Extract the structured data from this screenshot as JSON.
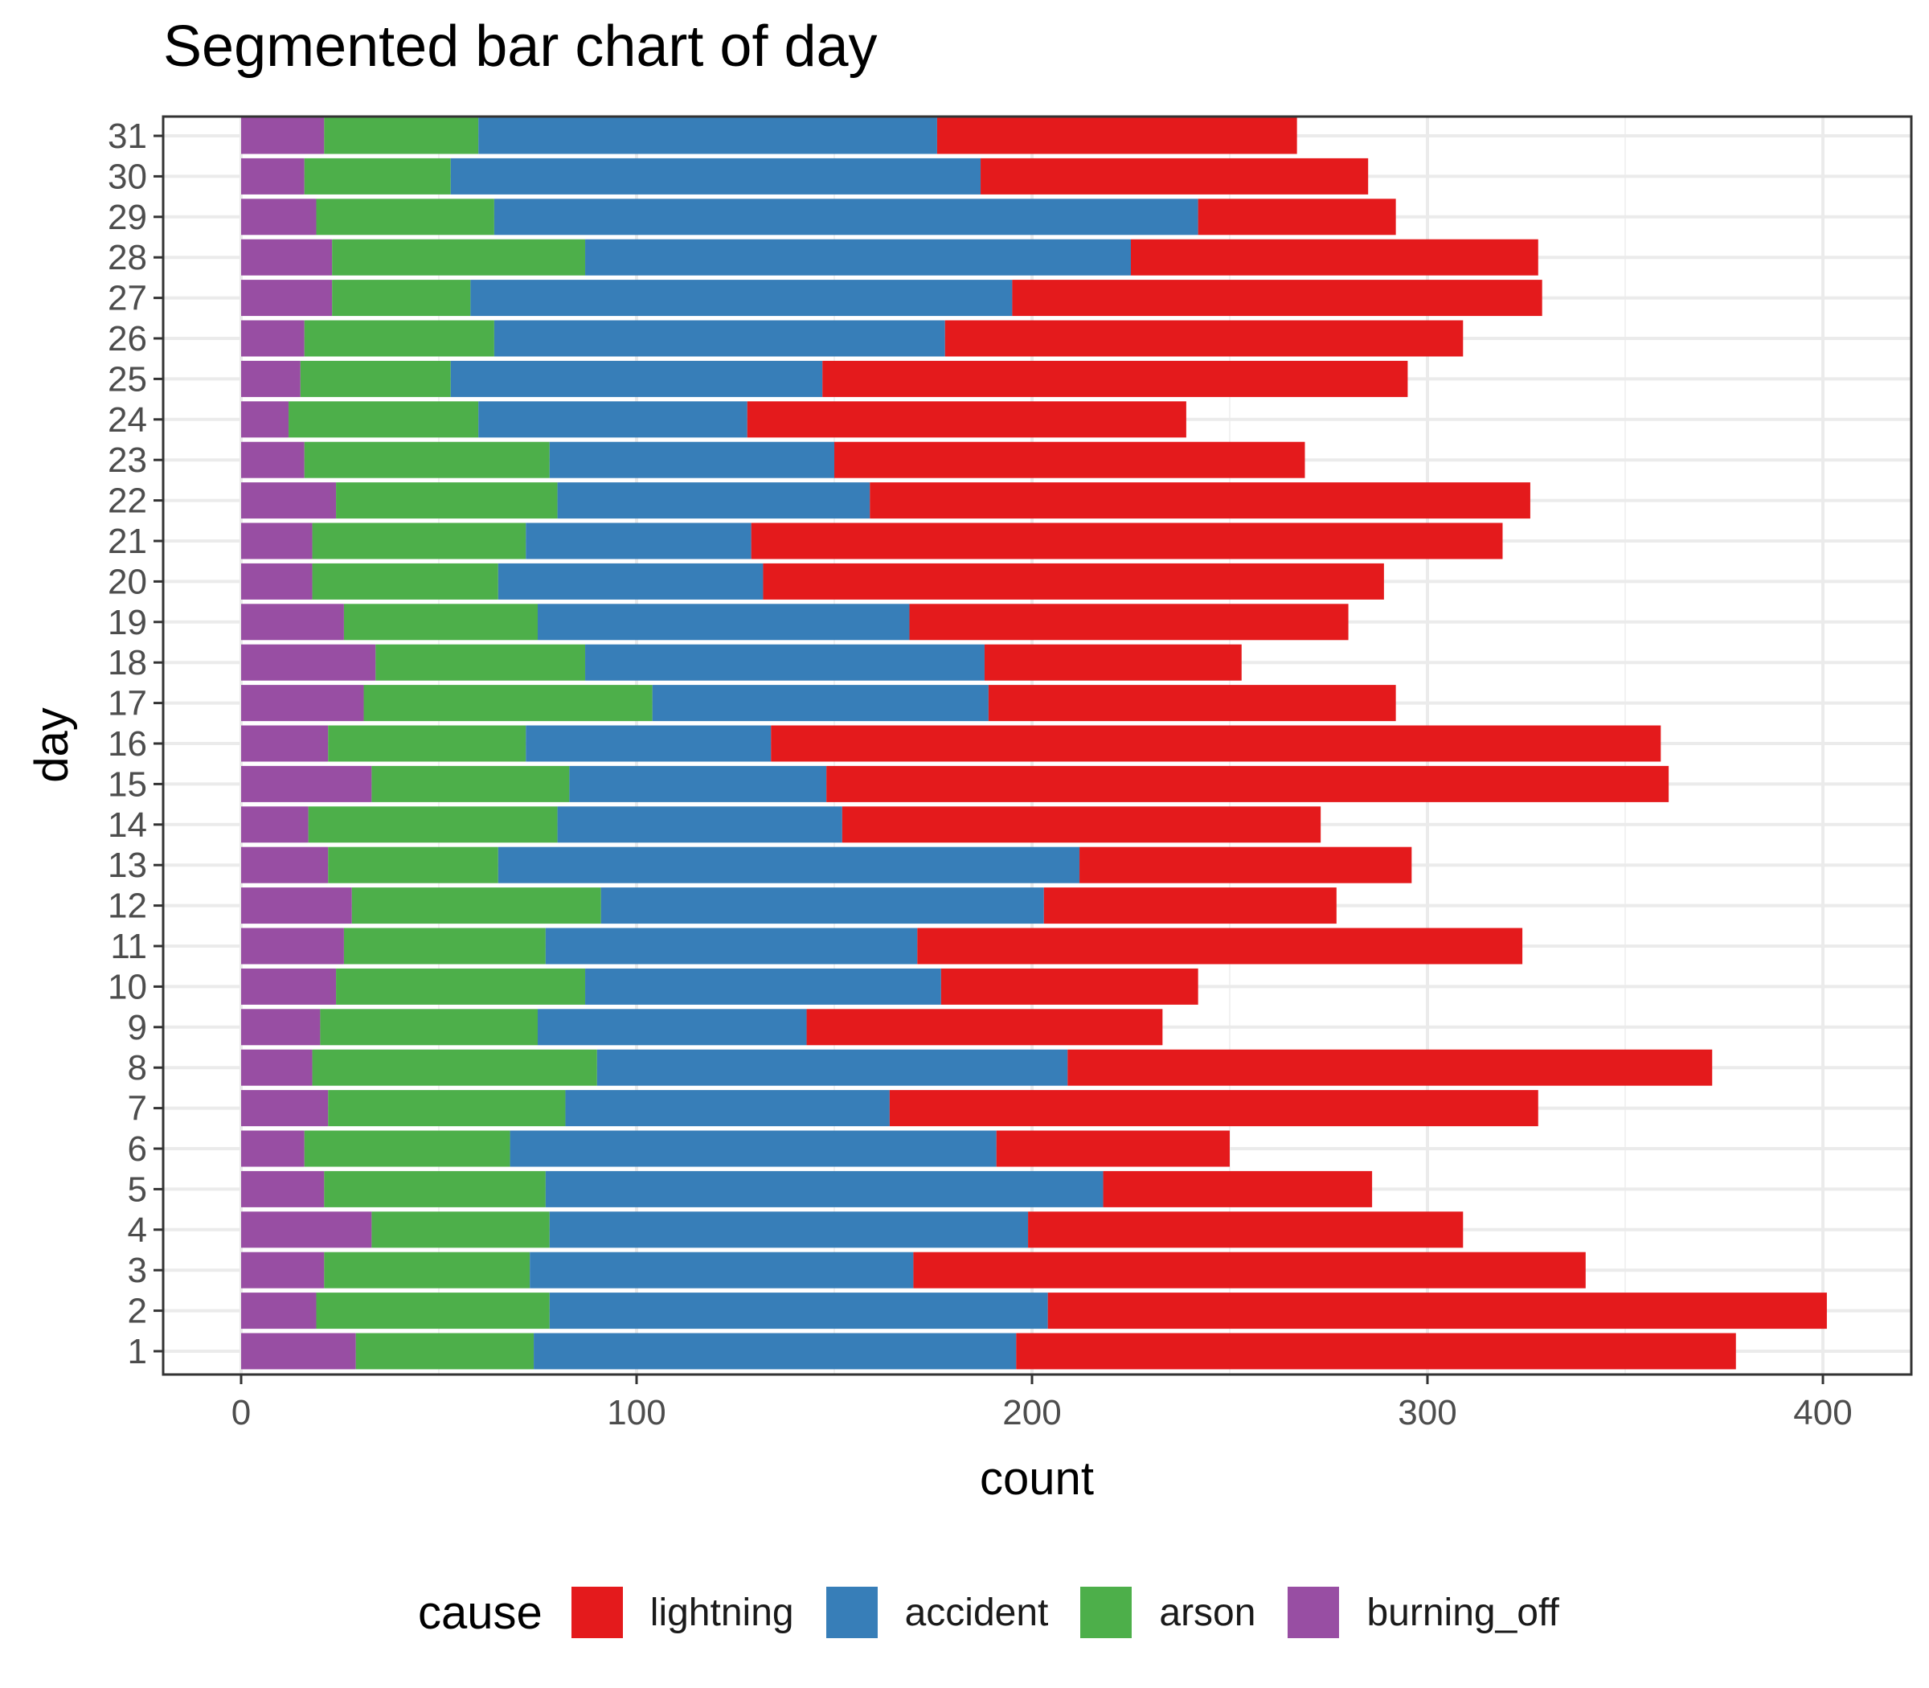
{
  "chart_data": {
    "type": "bar",
    "orientation": "horizontal",
    "stacked": true,
    "title": "Segmented bar chart of day",
    "xlabel": "count",
    "ylabel": "day",
    "xlim": [
      0,
      400
    ],
    "x_ticks": [
      0,
      100,
      200,
      300,
      400
    ],
    "grid": true,
    "legend_position": "bottom",
    "legend_title": "cause",
    "categories": [
      "1",
      "2",
      "3",
      "4",
      "5",
      "6",
      "7",
      "8",
      "9",
      "10",
      "11",
      "12",
      "13",
      "14",
      "15",
      "16",
      "17",
      "18",
      "19",
      "20",
      "21",
      "22",
      "23",
      "24",
      "25",
      "26",
      "27",
      "28",
      "29",
      "30",
      "31"
    ],
    "stack_order": [
      "burning_off",
      "arson",
      "accident",
      "lightning"
    ],
    "series": [
      {
        "name": "lightning",
        "color": "#e41a1c",
        "values": [
          182,
          197,
          170,
          110,
          68,
          59,
          164,
          163,
          90,
          65,
          153,
          74,
          84,
          121,
          213,
          225,
          103,
          65,
          111,
          157,
          190,
          167,
          119,
          111,
          148,
          131,
          134,
          103,
          50,
          98,
          91
        ]
      },
      {
        "name": "accident",
        "color": "#377eb8",
        "values": [
          122,
          126,
          97,
          121,
          141,
          123,
          82,
          119,
          68,
          90,
          94,
          112,
          147,
          72,
          65,
          62,
          85,
          101,
          94,
          67,
          57,
          79,
          72,
          68,
          94,
          114,
          137,
          138,
          178,
          134,
          116
        ]
      },
      {
        "name": "arson",
        "color": "#4daf4a",
        "values": [
          45,
          59,
          52,
          45,
          56,
          52,
          60,
          72,
          55,
          63,
          51,
          63,
          43,
          63,
          50,
          50,
          73,
          53,
          49,
          47,
          54,
          56,
          62,
          48,
          38,
          48,
          35,
          64,
          45,
          37,
          39
        ]
      },
      {
        "name": "burning_off",
        "color": "#984ea3",
        "values": [
          29,
          19,
          21,
          33,
          21,
          16,
          22,
          18,
          20,
          24,
          26,
          28,
          22,
          17,
          33,
          22,
          31,
          34,
          26,
          18,
          18,
          24,
          16,
          12,
          15,
          16,
          23,
          23,
          19,
          16,
          21
        ]
      }
    ]
  }
}
